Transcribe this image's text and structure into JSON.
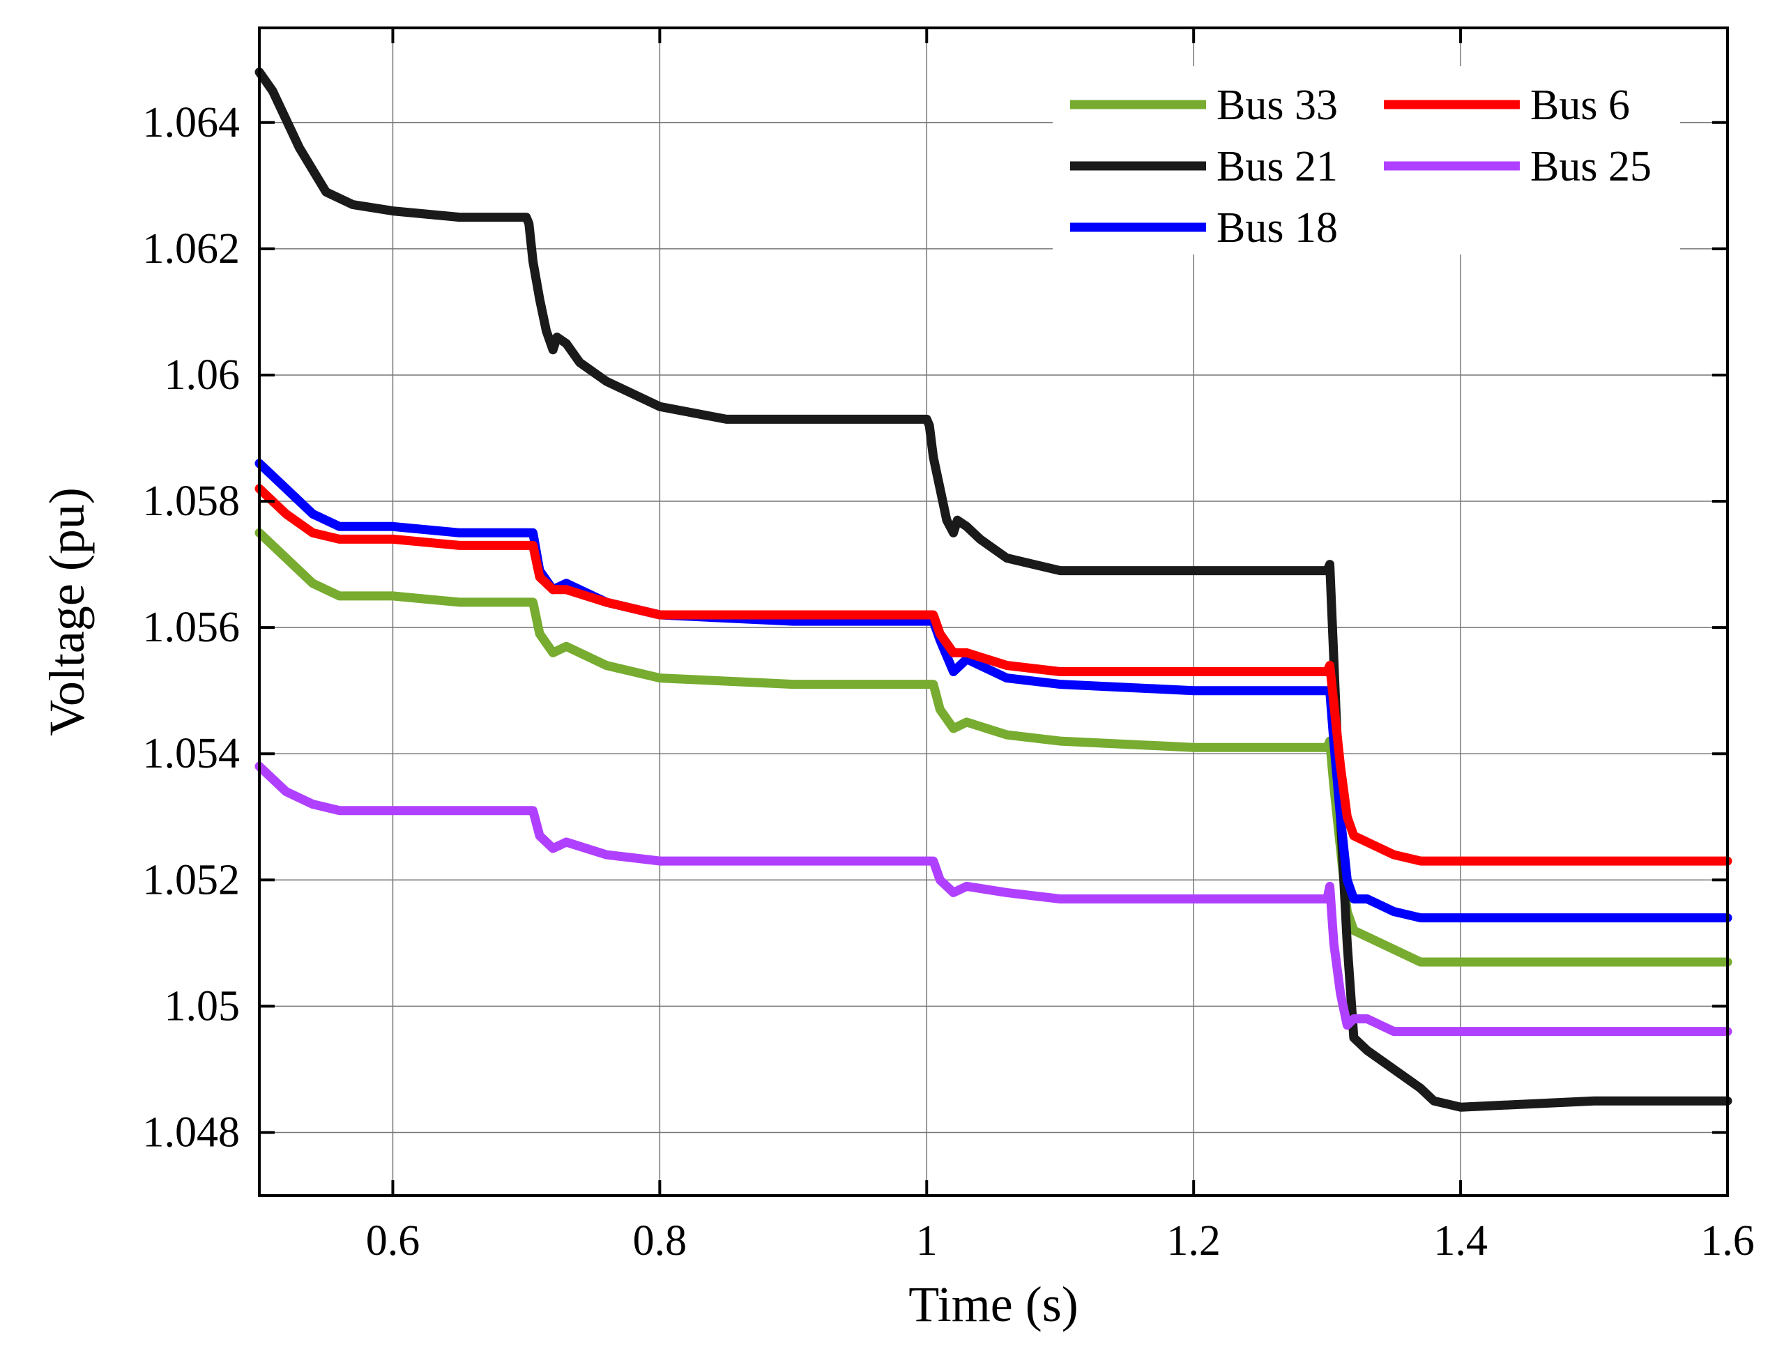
{
  "chart_data": {
    "type": "line",
    "title": "",
    "xlabel": "Time (s)",
    "ylabel": "Voltage (pu)",
    "xlim": [
      0.5,
      1.6
    ],
    "ylim": [
      1.047,
      1.0655
    ],
    "xticks": [
      0.6,
      0.8,
      1.0,
      1.2,
      1.4,
      1.6
    ],
    "xtick_labels": [
      "0.6",
      "0.8",
      "1",
      "1.2",
      "1.4",
      "1.6"
    ],
    "yticks": [
      1.048,
      1.05,
      1.052,
      1.054,
      1.056,
      1.058,
      1.06,
      1.062,
      1.064
    ],
    "ytick_labels": [
      "1.048",
      "1.05",
      "1.052",
      "1.054",
      "1.056",
      "1.058",
      "1.06",
      "1.062",
      "1.064"
    ],
    "grid": true,
    "legend_position": "top-right",
    "series": [
      {
        "name": "Bus 33",
        "color": "#77AC30",
        "x": [
          0.5,
          0.52,
          0.54,
          0.56,
          0.6,
          0.65,
          0.7,
          0.705,
          0.71,
          0.72,
          0.73,
          0.76,
          0.8,
          0.9,
          1.0,
          1.005,
          1.01,
          1.02,
          1.03,
          1.06,
          1.1,
          1.2,
          1.3,
          1.302,
          1.305,
          1.31,
          1.315,
          1.32,
          1.33,
          1.35,
          1.37,
          1.4,
          1.5,
          1.6
        ],
        "y": [
          1.0575,
          1.0571,
          1.0567,
          1.0565,
          1.0565,
          1.0564,
          1.0564,
          1.0564,
          1.0559,
          1.0556,
          1.0557,
          1.0554,
          1.0552,
          1.0551,
          1.0551,
          1.0551,
          1.0547,
          1.0544,
          1.0545,
          1.0543,
          1.0542,
          1.0541,
          1.0541,
          1.0542,
          1.0535,
          1.0525,
          1.0515,
          1.0512,
          1.0511,
          1.0509,
          1.0507,
          1.0507,
          1.0507,
          1.0507
        ]
      },
      {
        "name": "Bus 21",
        "color": "#1a1a1a",
        "x": [
          0.5,
          0.51,
          0.53,
          0.55,
          0.57,
          0.6,
          0.65,
          0.7,
          0.702,
          0.705,
          0.71,
          0.715,
          0.72,
          0.723,
          0.73,
          0.74,
          0.76,
          0.8,
          0.85,
          0.9,
          1.0,
          1.002,
          1.005,
          1.01,
          1.015,
          1.02,
          1.023,
          1.03,
          1.04,
          1.06,
          1.1,
          1.2,
          1.3,
          1.302,
          1.305,
          1.31,
          1.315,
          1.32,
          1.33,
          1.35,
          1.37,
          1.38,
          1.4,
          1.5,
          1.6
        ],
        "y": [
          1.0648,
          1.0645,
          1.0636,
          1.0629,
          1.0627,
          1.0626,
          1.0625,
          1.0625,
          1.0624,
          1.0618,
          1.0612,
          1.0607,
          1.0604,
          1.0606,
          1.0605,
          1.0602,
          1.0599,
          1.0595,
          1.0593,
          1.0593,
          1.0593,
          1.0592,
          1.0587,
          1.0582,
          1.0577,
          1.0575,
          1.0577,
          1.0576,
          1.0574,
          1.0571,
          1.0569,
          1.0569,
          1.0569,
          1.057,
          1.0555,
          1.053,
          1.051,
          1.0495,
          1.0493,
          1.049,
          1.0487,
          1.0485,
          1.0484,
          1.0485,
          1.0485
        ]
      },
      {
        "name": "Bus 18",
        "color": "#0000FF",
        "x": [
          0.5,
          0.52,
          0.54,
          0.56,
          0.6,
          0.65,
          0.7,
          0.705,
          0.71,
          0.72,
          0.73,
          0.76,
          0.8,
          0.9,
          1.0,
          1.005,
          1.01,
          1.02,
          1.03,
          1.06,
          1.1,
          1.2,
          1.3,
          1.302,
          1.305,
          1.31,
          1.315,
          1.32,
          1.33,
          1.35,
          1.37,
          1.4,
          1.5,
          1.6
        ],
        "y": [
          1.0586,
          1.0582,
          1.0578,
          1.0576,
          1.0576,
          1.0575,
          1.0575,
          1.0575,
          1.0569,
          1.0566,
          1.0567,
          1.0564,
          1.0562,
          1.0561,
          1.0561,
          1.0561,
          1.0558,
          1.0553,
          1.0555,
          1.0552,
          1.0551,
          1.055,
          1.055,
          1.055,
          1.0542,
          1.053,
          1.052,
          1.0517,
          1.0517,
          1.0515,
          1.0514,
          1.0514,
          1.0514,
          1.0514
        ]
      },
      {
        "name": "Bus 6",
        "color": "#FF0000",
        "x": [
          0.5,
          0.52,
          0.54,
          0.56,
          0.6,
          0.65,
          0.7,
          0.705,
          0.71,
          0.72,
          0.73,
          0.76,
          0.8,
          0.9,
          1.0,
          1.005,
          1.01,
          1.02,
          1.03,
          1.06,
          1.1,
          1.2,
          1.3,
          1.302,
          1.305,
          1.31,
          1.315,
          1.32,
          1.33,
          1.35,
          1.37,
          1.4,
          1.5,
          1.6
        ],
        "y": [
          1.0582,
          1.0578,
          1.0575,
          1.0574,
          1.0574,
          1.0573,
          1.0573,
          1.0573,
          1.0568,
          1.0566,
          1.0566,
          1.0564,
          1.0562,
          1.0562,
          1.0562,
          1.0562,
          1.0559,
          1.0556,
          1.0556,
          1.0554,
          1.0553,
          1.0553,
          1.0553,
          1.0554,
          1.0548,
          1.0538,
          1.053,
          1.0527,
          1.0526,
          1.0524,
          1.0523,
          1.0523,
          1.0523,
          1.0523
        ]
      },
      {
        "name": "Bus 25",
        "color": "#B040FF",
        "x": [
          0.5,
          0.52,
          0.54,
          0.56,
          0.6,
          0.65,
          0.7,
          0.705,
          0.71,
          0.72,
          0.73,
          0.76,
          0.8,
          0.9,
          1.0,
          1.005,
          1.01,
          1.02,
          1.03,
          1.06,
          1.1,
          1.2,
          1.3,
          1.302,
          1.305,
          1.31,
          1.315,
          1.32,
          1.33,
          1.35,
          1.37,
          1.4,
          1.5,
          1.6
        ],
        "y": [
          1.0538,
          1.0534,
          1.0532,
          1.0531,
          1.0531,
          1.0531,
          1.0531,
          1.0531,
          1.0527,
          1.0525,
          1.0526,
          1.0524,
          1.0523,
          1.0523,
          1.0523,
          1.0523,
          1.052,
          1.0518,
          1.0519,
          1.0518,
          1.0517,
          1.0517,
          1.0517,
          1.0519,
          1.051,
          1.0502,
          1.0497,
          1.0498,
          1.0498,
          1.0496,
          1.0496,
          1.0496,
          1.0496,
          1.0496
        ]
      }
    ]
  }
}
